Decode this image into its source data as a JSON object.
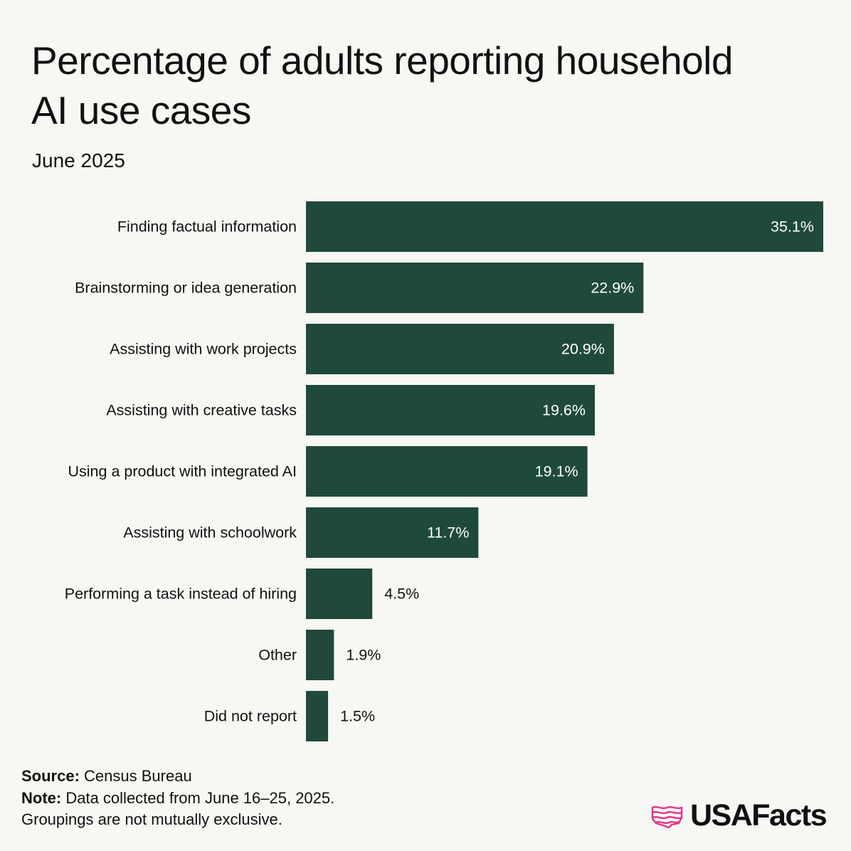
{
  "header": {
    "title": "Percentage of adults reporting household AI use cases",
    "subtitle": "June 2025"
  },
  "colors": {
    "bar": "#1f4a3b",
    "background": "#f7f7f3",
    "label_inside": "#ffffff",
    "label_outside": "#111111",
    "logo_accent": "#e6338a"
  },
  "chart_data": {
    "type": "bar",
    "orientation": "horizontal",
    "title": "Percentage of adults reporting household AI use cases",
    "subtitle": "June 2025",
    "categories": [
      "Finding factual information",
      "Brainstorming or idea generation",
      "Assisting with work projects",
      "Assisting with creative tasks",
      "Using a product with integrated AI",
      "Assisting with schoolwork",
      "Performing a task instead of hiring",
      "Other",
      "Did not report"
    ],
    "values": [
      35.1,
      22.9,
      20.9,
      19.6,
      19.1,
      11.7,
      4.5,
      1.9,
      1.5
    ],
    "value_labels": [
      "35.1%",
      "22.9%",
      "20.9%",
      "19.6%",
      "19.1%",
      "11.7%",
      "4.5%",
      "1.9%",
      "1.5%"
    ],
    "xlim": [
      0,
      35.1
    ],
    "xlabel": "",
    "ylabel": "",
    "grid": false,
    "legend": "none"
  },
  "footer": {
    "source_label": "Source:",
    "source_text": "Census Bureau",
    "note_label": "Note:",
    "note_text": "Data collected from June 16–25, 2025.",
    "note_text_2": "Groupings are not mutually exclusive."
  },
  "logo": {
    "text": "USAFacts",
    "icon": "usafacts-flag-map-icon"
  }
}
